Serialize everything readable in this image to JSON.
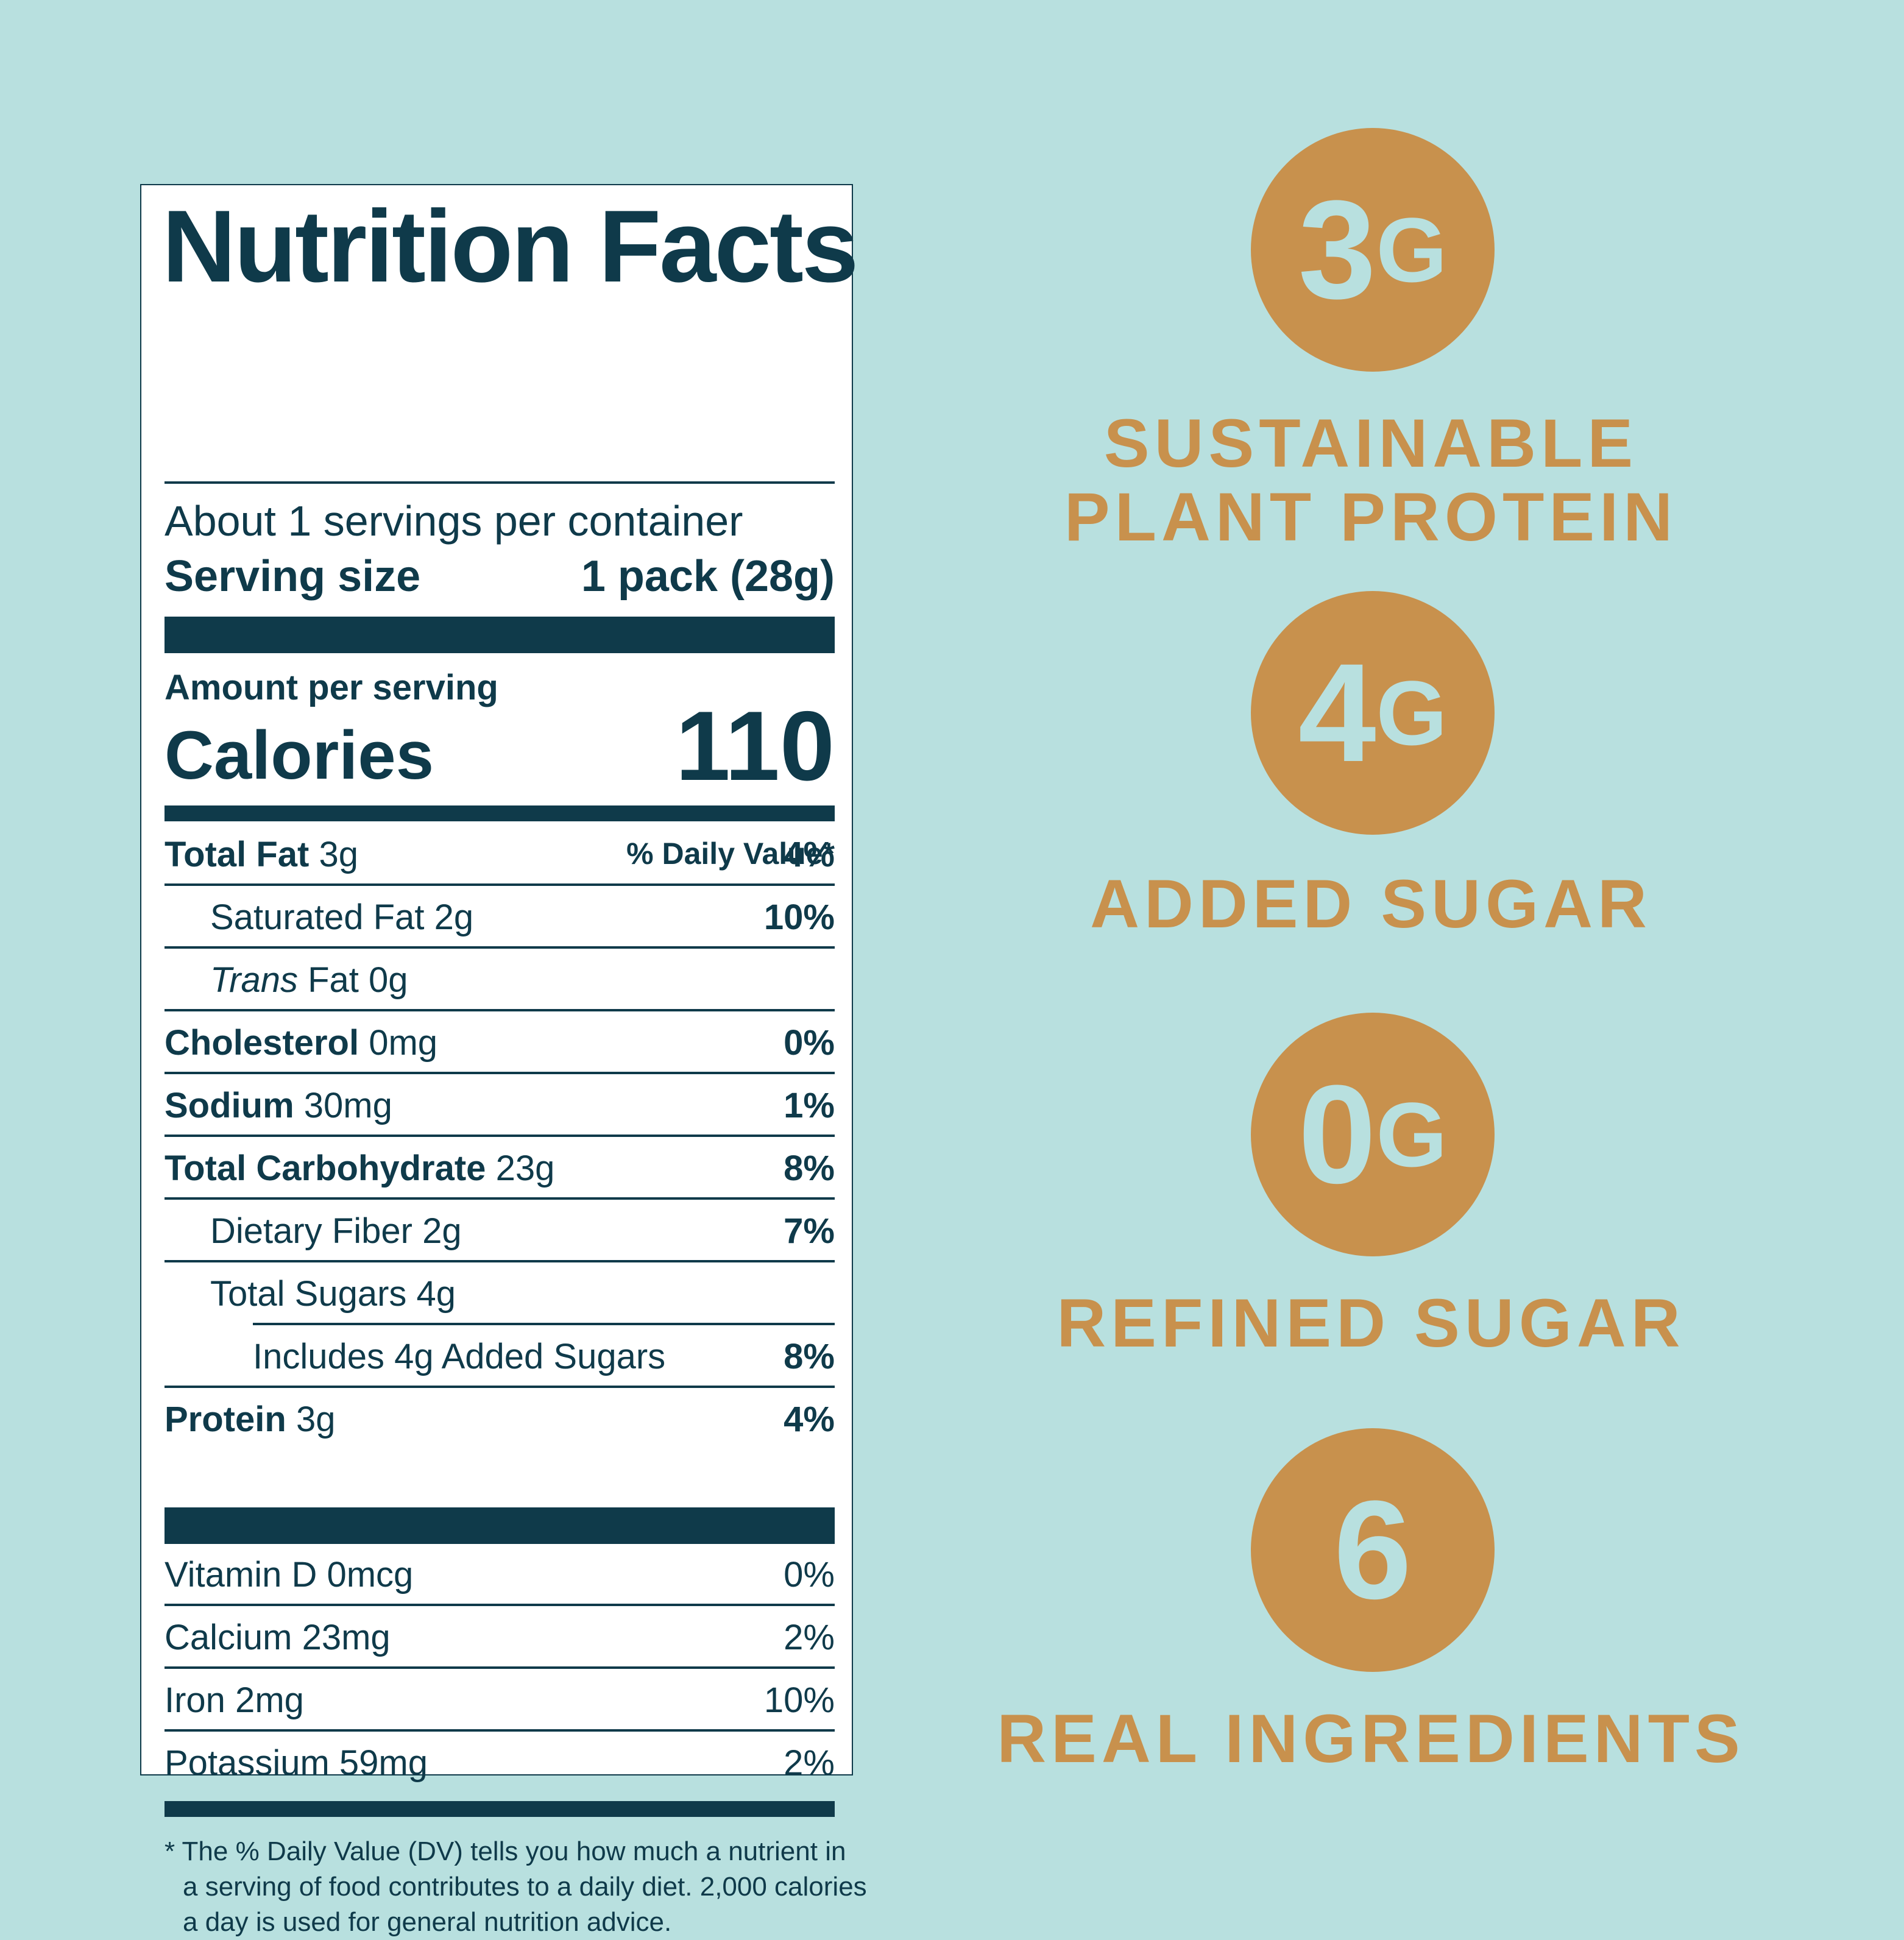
{
  "label": {
    "title": "Nutrition Facts",
    "servings": "About 1 servings per container",
    "serving_size_label": "Serving size",
    "serving_size_value": "1 pack (28g)",
    "amount_per_serving": "Amount per serving",
    "calories_label": "Calories",
    "calories_value": "110",
    "dv_header": "% Daily Value*",
    "nutrients": [
      {
        "name": "Total Fat",
        "amount": "3g",
        "dv": "4%"
      },
      {
        "name": "Saturated Fat",
        "amount": "2g",
        "dv": "10%"
      },
      {
        "name": "Trans",
        "amount": "Fat 0g",
        "dv": ""
      },
      {
        "name": "Cholesterol",
        "amount": "0mg",
        "dv": "0%"
      },
      {
        "name": "Sodium",
        "amount": "30mg",
        "dv": "1%"
      },
      {
        "name": "Total Carbohydrate",
        "amount": "23g",
        "dv": "8%"
      },
      {
        "name": "Dietary Fiber",
        "amount": "2g",
        "dv": "7%"
      },
      {
        "name": "Total Sugars",
        "amount": "4g",
        "dv": ""
      },
      {
        "name": "Includes 4g Added Sugars",
        "amount": "",
        "dv": "8%"
      },
      {
        "name": "Protein",
        "amount": "3g",
        "dv": "4%"
      }
    ],
    "vitamins": [
      {
        "name": "Vitamin D 0mcg",
        "dv": "0%"
      },
      {
        "name": "Calcium 23mg",
        "dv": "2%"
      },
      {
        "name": "Iron 2mg",
        "dv": "10%"
      },
      {
        "name": "Potassium 59mg",
        "dv": "2%"
      }
    ],
    "footnote": [
      "* The % Daily Value (DV) tells you how much a nutrient in",
      "a serving of food contributes to a daily diet. 2,000 calories",
      "a day is used for general nutrition advice."
    ]
  },
  "badges": [
    {
      "number": "3",
      "unit": "G",
      "caption": [
        "SUSTAINABLE",
        "PLANT PROTEIN"
      ]
    },
    {
      "number": "4",
      "unit": "G",
      "caption": [
        "ADDED SUGAR"
      ]
    },
    {
      "number": "0",
      "unit": "G",
      "caption": [
        "REFINED SUGAR"
      ]
    },
    {
      "number": "6",
      "unit": "",
      "caption": [
        "REAL INGREDIENTS"
      ]
    }
  ],
  "colors": {
    "background": "#b8e0df",
    "ink": "#0f3a4a",
    "badge": "#c8914d"
  }
}
